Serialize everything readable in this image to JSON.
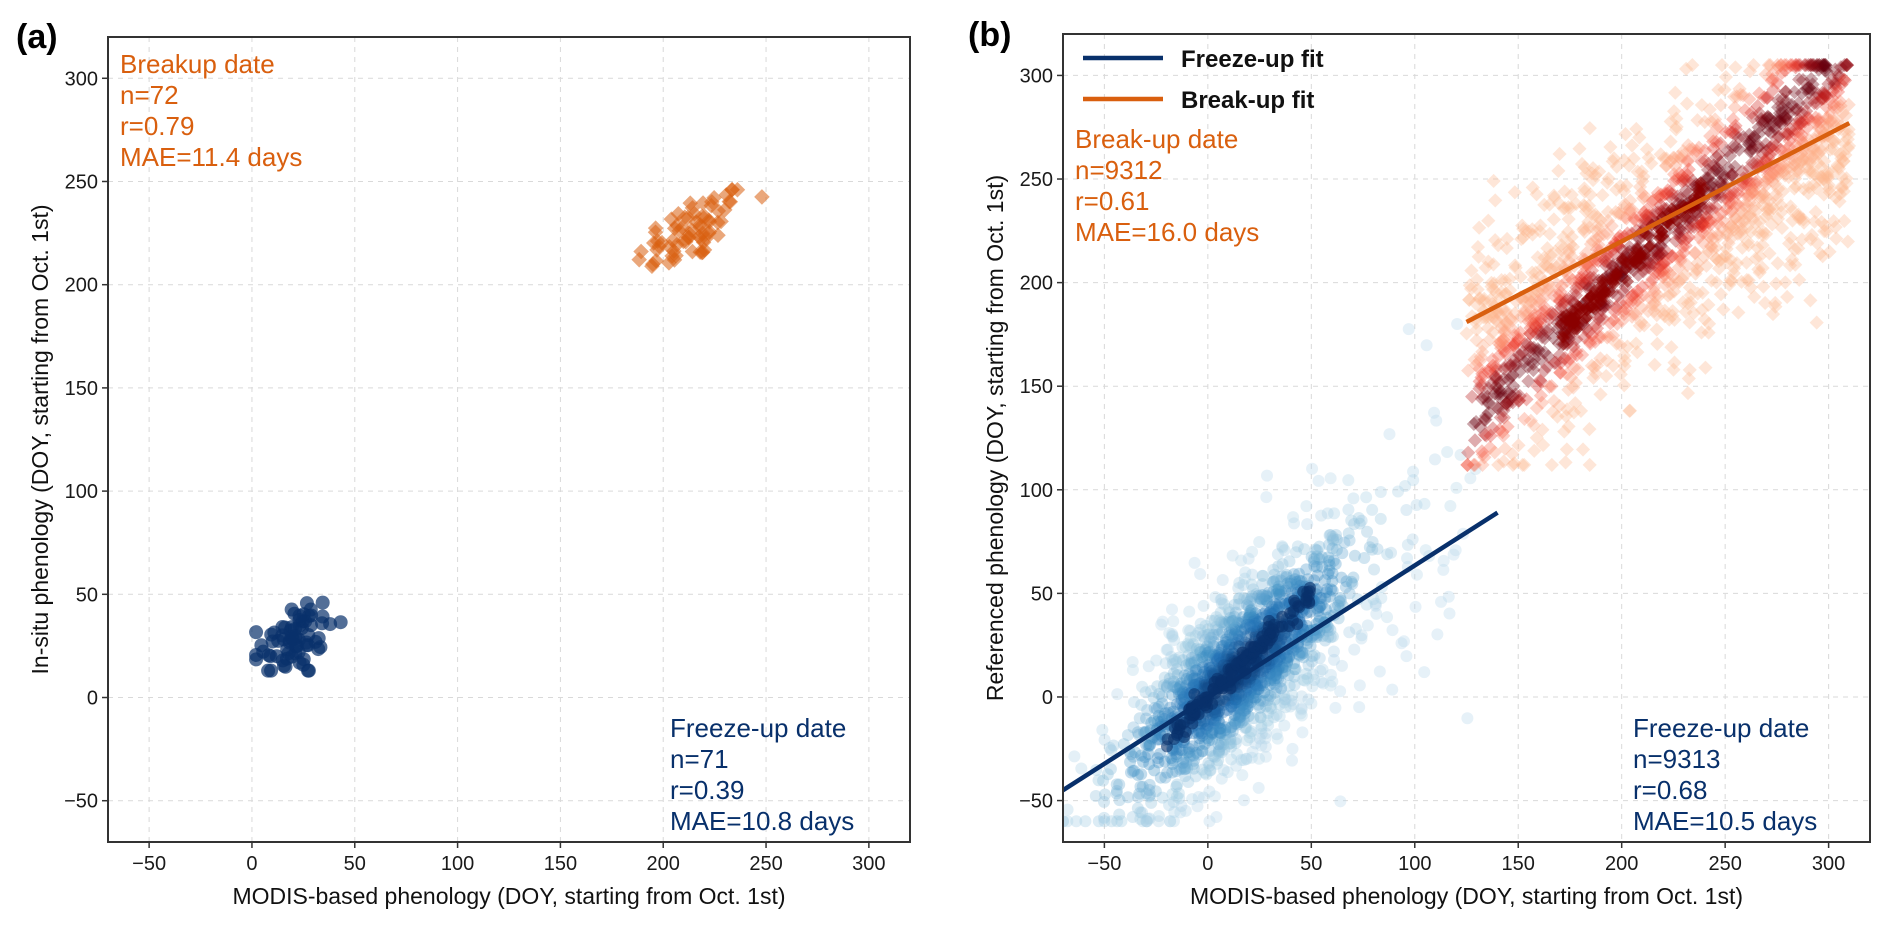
{
  "chart_data": [
    {
      "panel": "(a)",
      "type": "scatter",
      "xlabel": "MODIS-based phenology (DOY, starting from Oct. 1st)",
      "ylabel": "In-situ phenology (DOY, starting from Oct. 1st)",
      "xlim": [
        -70,
        320
      ],
      "ylim": [
        -70,
        320
      ],
      "xticks": [
        -50,
        0,
        50,
        100,
        150,
        200,
        250,
        300
      ],
      "yticks": [
        -50,
        0,
        50,
        100,
        150,
        200,
        250,
        300
      ],
      "grid": true,
      "series": [
        {
          "name": "Breakup date",
          "marker": "diamond",
          "color": "#D95F0E",
          "stats": [
            "Breakup date",
            "n=72",
            "r=0.79",
            "MAE=11.4 days"
          ],
          "stats_position": "top-left",
          "cluster": {
            "center": [
              215,
              227
            ],
            "spread": [
              14,
              8
            ],
            "slope": 0.55,
            "n": 72,
            "x_range": [
              188,
              248
            ],
            "y_range": [
              208,
              246
            ]
          }
        },
        {
          "name": "Freeze-up date",
          "marker": "circle",
          "color": "#08306B",
          "stats": [
            "Freeze-up date",
            "n=71",
            "r=0.39",
            "MAE=10.8 days"
          ],
          "stats_position": "bottom-right",
          "cluster": {
            "center": [
              20,
              28
            ],
            "spread": [
              10,
              10
            ],
            "slope": 0.3,
            "n": 71,
            "x_range": [
              2,
              44
            ],
            "y_range": [
              13,
              55
            ]
          }
        }
      ]
    },
    {
      "panel": "(b)",
      "type": "scatter",
      "xlabel": "MODIS-based phenology (DOY, starting from Oct. 1st)",
      "ylabel": "Referenced phenology (DOY, starting from Oct. 1st)",
      "xlim": [
        -70,
        320
      ],
      "ylim": [
        -70,
        320
      ],
      "xticks": [
        -50,
        0,
        50,
        100,
        150,
        200,
        250,
        300
      ],
      "yticks": [
        -50,
        0,
        50,
        100,
        150,
        200,
        250,
        300
      ],
      "grid": true,
      "legend": {
        "position": "top-left",
        "entries": [
          {
            "label": "Freeze-up fit",
            "color": "#08306B"
          },
          {
            "label": "Break-up fit",
            "color": "#D95F0E"
          }
        ]
      },
      "series": [
        {
          "name": "Break-up date",
          "marker": "diamond",
          "colormap": "Reds (density)",
          "stats": [
            "Break-up date",
            "n=9312",
            "r=0.61",
            "MAE=16.0 days"
          ],
          "stats_position": "top-left",
          "cluster": {
            "center": [
              210,
              225
            ],
            "spread": [
              35,
              35
            ],
            "x_range": [
              125,
              310
            ],
            "y_range": [
              112,
              305
            ],
            "n": 9312
          },
          "fit_line": {
            "x": [
              125,
              310
            ],
            "y": [
              181,
              277
            ]
          }
        },
        {
          "name": "Freeze-up date",
          "marker": "circle",
          "colormap": "Blues (density)",
          "stats": [
            "Freeze-up date",
            "n=9313",
            "r=0.68",
            "MAE=10.5 days"
          ],
          "stats_position": "bottom-right",
          "cluster": {
            "center": [
              15,
              5
            ],
            "spread": [
              25,
              25
            ],
            "x_range": [
              -70,
              140
            ],
            "y_range": [
              -60,
              180
            ],
            "n": 9313
          },
          "fit_line": {
            "x": [
              -70,
              140
            ],
            "y": [
              -45,
              89
            ]
          }
        }
      ]
    }
  ]
}
